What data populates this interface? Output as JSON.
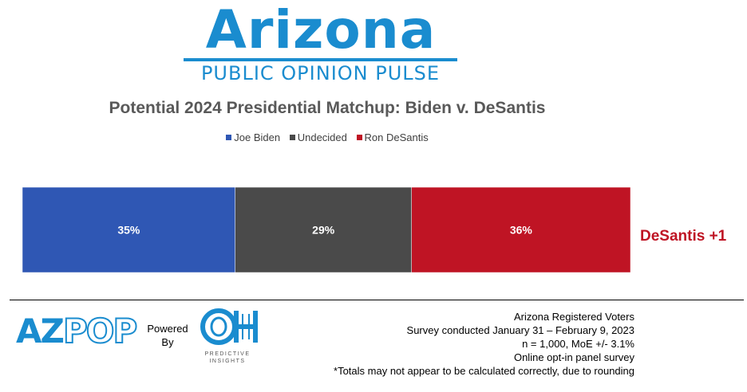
{
  "header": {
    "logo_title": "Arizona",
    "logo_subtitle": "PUBLIC OPINION PULSE"
  },
  "chart_data": {
    "type": "bar",
    "orientation": "horizontal-stacked",
    "title": "Potential 2024 Presidential Matchup: Biden v. DeSantis",
    "series": [
      {
        "name": "Joe Biden",
        "value": 35,
        "label": "35%",
        "color": "#2f57b4"
      },
      {
        "name": "Undecided",
        "value": 29,
        "label": "29%",
        "color": "#4a4a4a"
      },
      {
        "name": "Ron DeSantis",
        "value": 36,
        "label": "36%",
        "color": "#bf1424"
      }
    ],
    "xlim": [
      0,
      100
    ],
    "grid": false,
    "legend_position": "top",
    "annotation": {
      "text": "DeSantis +1",
      "color": "#bf1424"
    }
  },
  "footer": {
    "azpop_logo": {
      "az": "AZ",
      "pop": "POP",
      "color": "#1a8ccf"
    },
    "powered_by": [
      "Powered",
      "By"
    ],
    "oh_logo": {
      "mark": "OH",
      "caption_line1": "PREDICTIVE",
      "caption_line2": "INSIGHTS",
      "color": "#1a8ccf"
    },
    "notes": [
      "Arizona Registered Voters",
      "Survey conducted January 31 – February 9, 2023",
      "n = 1,000, MoE +/- 3.1%",
      "Online opt-in panel survey",
      "*Totals may not appear to be calculated correctly, due to rounding"
    ]
  }
}
